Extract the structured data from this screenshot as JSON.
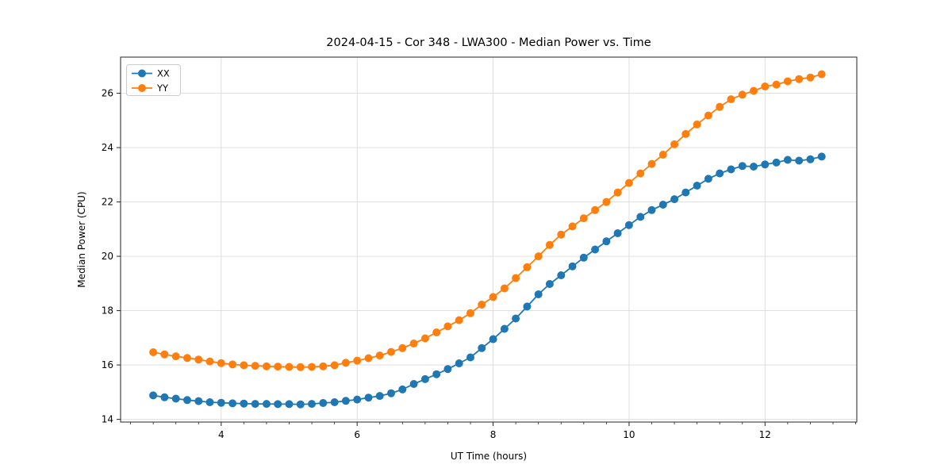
{
  "figure": {
    "background": "#ffffff"
  },
  "chart_data": {
    "type": "line",
    "title": "2024-04-15 - Cor 348 - LWA300 - Median Power vs. Time",
    "xlabel": "UT Time (hours)",
    "ylabel": "Median Power (CPU)",
    "xlim": [
      2.52,
      13.35
    ],
    "ylim": [
      13.9,
      27.33
    ],
    "xticks": [
      4,
      6,
      8,
      10,
      12
    ],
    "yticks": [
      14,
      16,
      18,
      20,
      22,
      24,
      26
    ],
    "minor_xtick_step": 0.3333,
    "grid": true,
    "grid_color": "#dbdbdb",
    "spine_color": "#262626",
    "legend_position": "upper left",
    "marker": "circle",
    "x": [
      3.0,
      3.167,
      3.333,
      3.5,
      3.667,
      3.833,
      4.0,
      4.167,
      4.333,
      4.5,
      4.667,
      4.833,
      5.0,
      5.167,
      5.333,
      5.5,
      5.667,
      5.833,
      6.0,
      6.167,
      6.333,
      6.5,
      6.667,
      6.833,
      7.0,
      7.167,
      7.333,
      7.5,
      7.667,
      7.833,
      8.0,
      8.167,
      8.333,
      8.5,
      8.667,
      8.833,
      9.0,
      9.167,
      9.333,
      9.5,
      9.667,
      9.833,
      10.0,
      10.167,
      10.333,
      10.5,
      10.667,
      10.833,
      11.0,
      11.167,
      11.333,
      11.5,
      11.667,
      11.833,
      12.0,
      12.167,
      12.333,
      12.5,
      12.667,
      12.833
    ],
    "series": [
      {
        "name": "XX",
        "color": "#1f77b4",
        "values": [
          14.88,
          14.81,
          14.76,
          14.71,
          14.67,
          14.63,
          14.61,
          14.59,
          14.58,
          14.57,
          14.57,
          14.56,
          14.56,
          14.55,
          14.57,
          14.6,
          14.63,
          14.68,
          14.73,
          14.8,
          14.86,
          14.96,
          15.1,
          15.3,
          15.48,
          15.66,
          15.85,
          16.06,
          16.28,
          16.62,
          16.95,
          17.33,
          17.71,
          18.15,
          18.6,
          18.98,
          19.3,
          19.63,
          19.95,
          20.25,
          20.55,
          20.85,
          21.15,
          21.45,
          21.7,
          21.9,
          22.1,
          22.35,
          22.6,
          22.85,
          23.05,
          23.2,
          23.32,
          23.3,
          23.38,
          23.45,
          23.55,
          23.52,
          23.57,
          23.67
        ]
      },
      {
        "name": "YY",
        "color": "#ff7f0e",
        "values": [
          16.47,
          16.39,
          16.32,
          16.26,
          16.2,
          16.13,
          16.07,
          16.02,
          15.99,
          15.97,
          15.95,
          15.94,
          15.93,
          15.92,
          15.93,
          15.95,
          15.99,
          16.08,
          16.16,
          16.25,
          16.35,
          16.48,
          16.62,
          16.79,
          16.98,
          17.2,
          17.42,
          17.65,
          17.91,
          18.22,
          18.5,
          18.82,
          19.2,
          19.6,
          20.0,
          20.42,
          20.8,
          21.1,
          21.4,
          21.7,
          22.0,
          22.35,
          22.7,
          23.05,
          23.4,
          23.74,
          24.12,
          24.5,
          24.85,
          25.18,
          25.5,
          25.78,
          25.95,
          26.09,
          26.25,
          26.32,
          26.44,
          26.52,
          26.58,
          26.7
        ]
      }
    ]
  }
}
